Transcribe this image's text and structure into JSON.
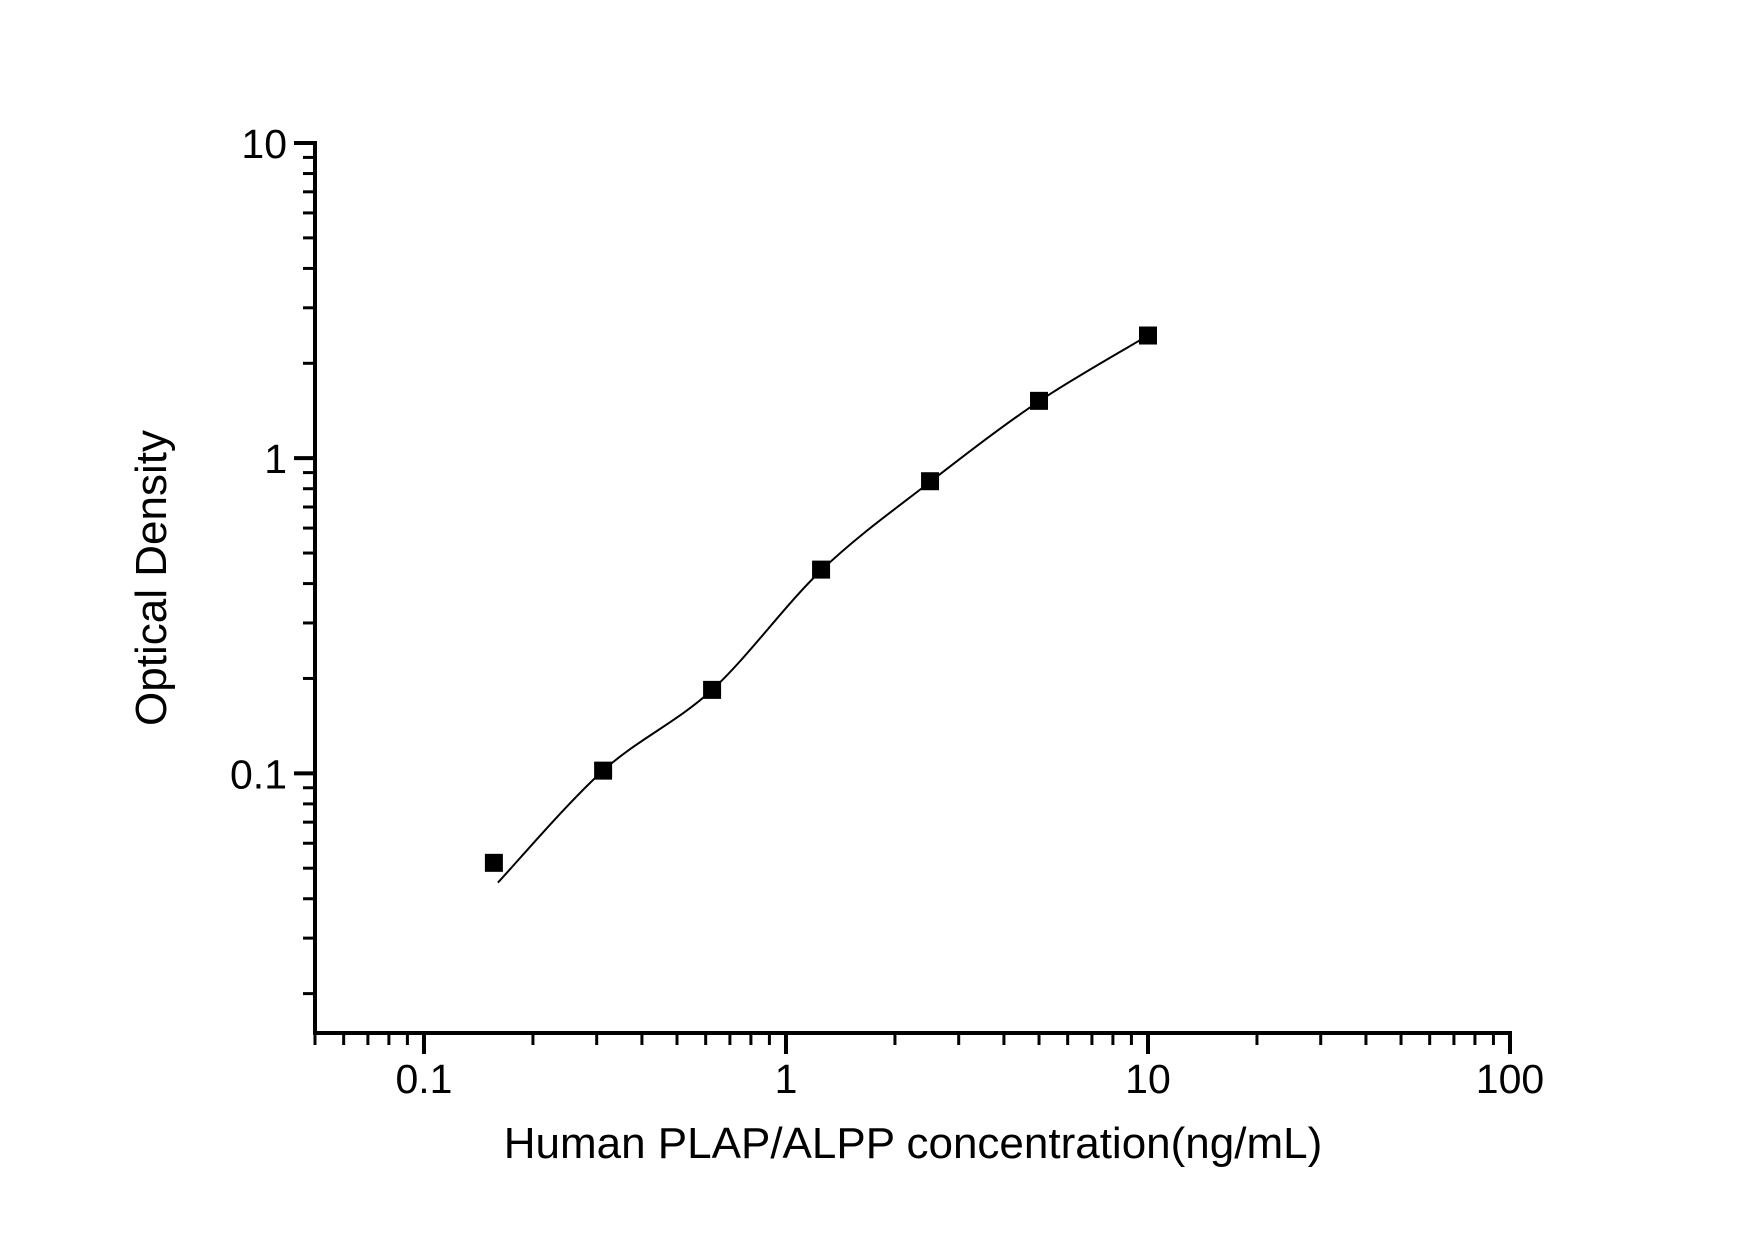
{
  "chart_data": {
    "type": "scatter",
    "title": "",
    "xlabel": "Human PLAP/ALPP concentration(ng/mL)",
    "ylabel": "Optical Density",
    "x_scale": "log",
    "y_scale": "log",
    "xlim": [
      0.05,
      100
    ],
    "ylim": [
      0.015,
      10
    ],
    "grid": false,
    "legend": "none",
    "x_ticks": [
      {
        "value": 0.1,
        "label": "0.1"
      },
      {
        "value": 1,
        "label": "1"
      },
      {
        "value": 10,
        "label": "10"
      },
      {
        "value": 100,
        "label": "100"
      }
    ],
    "y_ticks": [
      {
        "value": 0.1,
        "label": "0.1"
      },
      {
        "value": 1,
        "label": "1"
      },
      {
        "value": 10,
        "label": "10"
      }
    ],
    "series": [
      {
        "name": "fitted-curve",
        "type": "line",
        "color": "#000000",
        "x": [
          0.16,
          0.3125,
          0.625,
          1.25,
          2.5,
          5,
          10
        ],
        "y": [
          0.045,
          0.102,
          0.184,
          0.44,
          0.84,
          1.515,
          2.45
        ]
      },
      {
        "name": "standard-points",
        "type": "scatter",
        "marker": "filled-square",
        "color": "#000000",
        "x": [
          0.156,
          0.3125,
          0.625,
          1.25,
          2.5,
          5,
          10
        ],
        "y": [
          0.052,
          0.102,
          0.184,
          0.443,
          0.845,
          1.52,
          2.45
        ]
      }
    ],
    "colors": {
      "foreground": "#000000",
      "background": "#ffffff"
    }
  }
}
